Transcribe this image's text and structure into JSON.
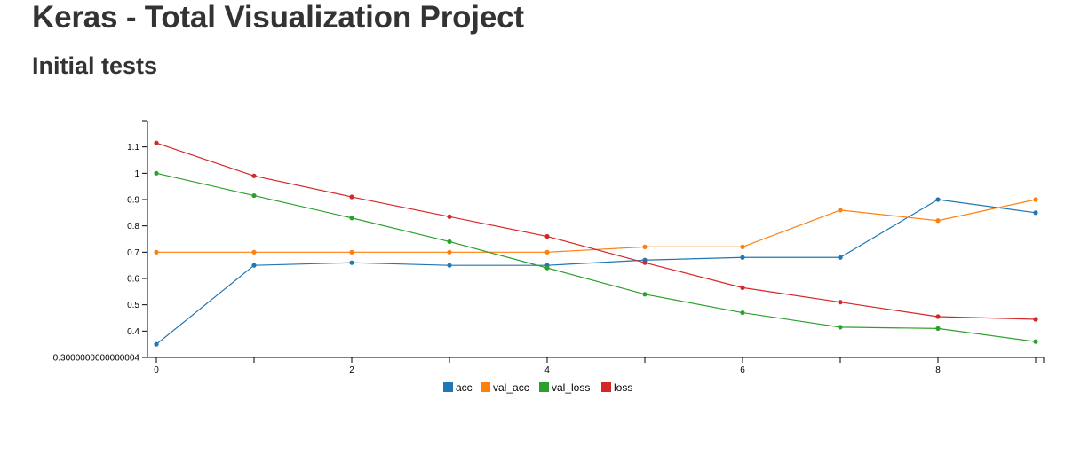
{
  "page": {
    "title": "Keras - Total Visualization Project",
    "subtitle": "Initial tests"
  },
  "chart_data": {
    "type": "line",
    "x": [
      0,
      1,
      2,
      3,
      4,
      5,
      6,
      7,
      8,
      9
    ],
    "xlim": [
      0,
      9
    ],
    "ylim": [
      0.3,
      1.2
    ],
    "x_ticks": [
      "0",
      "2",
      "4",
      "6",
      "8"
    ],
    "y_ticks": [
      "0.3000000000000004",
      "0.4",
      "0.5",
      "0.6",
      "0.7",
      "0.8",
      "0.9",
      "1",
      "1.1"
    ],
    "legend_position": "bottom-center",
    "grid": false,
    "series": [
      {
        "name": "acc",
        "color": "#1f77b4",
        "values": [
          0.35,
          0.65,
          0.66,
          0.65,
          0.65,
          0.67,
          0.68,
          0.68,
          0.9,
          0.85
        ]
      },
      {
        "name": "val_acc",
        "color": "#ff7f0e",
        "values": [
          0.7,
          0.7,
          0.7,
          0.7,
          0.7,
          0.72,
          0.72,
          0.86,
          0.82,
          0.9
        ]
      },
      {
        "name": "val_loss",
        "color": "#2ca02c",
        "values": [
          1.0,
          0.915,
          0.83,
          0.74,
          0.64,
          0.54,
          0.47,
          0.415,
          0.41,
          0.36
        ]
      },
      {
        "name": "loss",
        "color": "#d62728",
        "values": [
          1.115,
          0.99,
          0.91,
          0.835,
          0.76,
          0.66,
          0.565,
          0.51,
          0.455,
          0.445
        ]
      }
    ]
  }
}
